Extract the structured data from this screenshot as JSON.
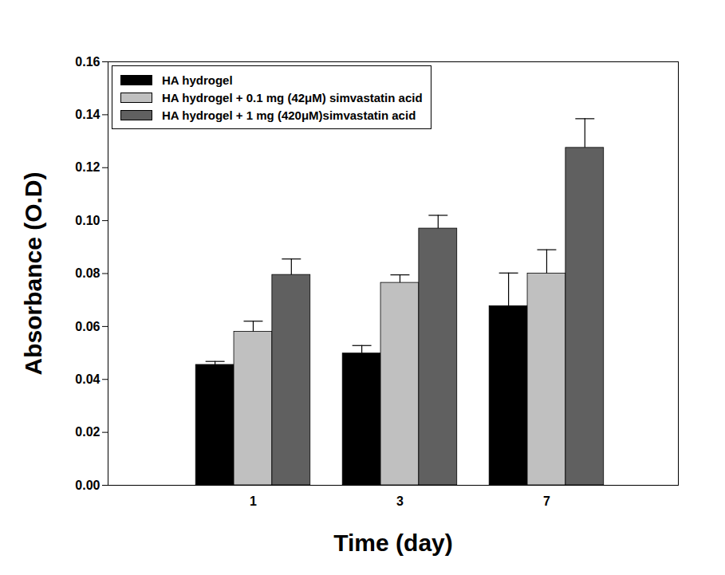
{
  "chart_data": {
    "type": "bar",
    "x_label": "Time (day)",
    "y_label": "Absorbance (O.D)",
    "categories": [
      "1",
      "3",
      "7"
    ],
    "series": [
      {
        "name": "HA hydrogel",
        "color": "#000000",
        "values": [
          0.0455,
          0.0498,
          0.0677
        ],
        "errors": [
          0.0013,
          0.003,
          0.0125
        ]
      },
      {
        "name": "HA hydrogel + 0.1 mg (42μM) simvastatin acid",
        "color": "#c0c0c0",
        "values": [
          0.058,
          0.0765,
          0.08
        ],
        "errors": [
          0.004,
          0.003,
          0.009
        ]
      },
      {
        "name": "HA hydrogel + 1 mg (420μM)simvastatin acid",
        "color": "#606060",
        "values": [
          0.0795,
          0.097,
          0.1275
        ],
        "errors": [
          0.006,
          0.005,
          0.011
        ]
      }
    ],
    "ylim": [
      0,
      0.16
    ],
    "yticks": [
      {
        "value": 0,
        "label": "0.00"
      },
      0.02,
      0.04,
      0.06,
      0.08,
      {
        "value": 0.1,
        "label": "0.10"
      },
      0.12,
      0.14,
      0.16
    ],
    "legend": "upper left"
  }
}
